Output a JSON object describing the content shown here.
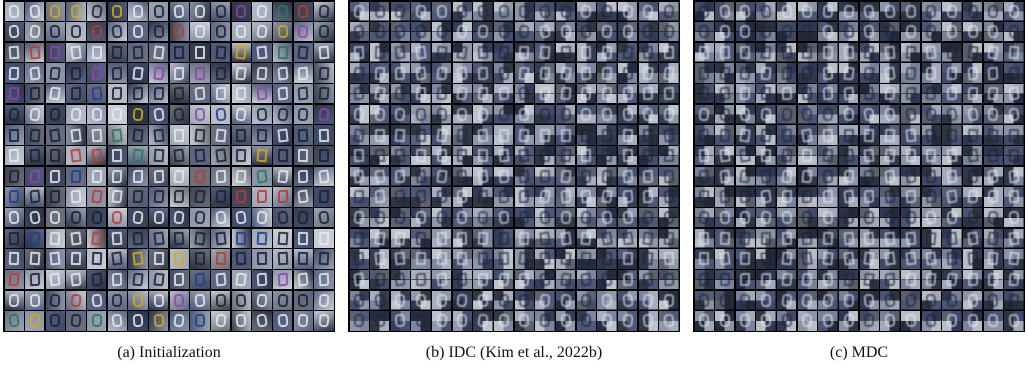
{
  "panels": [
    {
      "id": "initialization",
      "caption": "(a) Initialization",
      "style": "sharp",
      "palette": [
        "#3f4a66",
        "#5c6683",
        "#8a93a8",
        "#b7bccb",
        "#2b3348",
        "#6a6f7a",
        "#9aa4b3",
        "#4d5a7a",
        "#c8ccd4",
        "#3a4150"
      ],
      "accent": [
        "#1e3f8f",
        "#c0392b",
        "#27795a",
        "#8e44ad",
        "#d4ac0d"
      ]
    },
    {
      "id": "idc",
      "caption": "(b) IDC (Kim et al., 2022b)",
      "style": "mosaic",
      "palette": [
        "#343d58",
        "#4e5878",
        "#7c869e",
        "#a7adbf",
        "#262d40",
        "#5d6373",
        "#8f98aa",
        "#444f6d",
        "#bcc1cc",
        "#303747"
      ],
      "accent": [
        "#2a4a8c",
        "#6b7ea6",
        "#3c5580"
      ]
    },
    {
      "id": "mdc",
      "caption": "(c) MDC",
      "style": "mosaic",
      "palette": [
        "#2f3852",
        "#4a5473",
        "#78829a",
        "#a3a9bb",
        "#242a3c",
        "#595f6e",
        "#8b94a6",
        "#404a68",
        "#b8bdc8",
        "#2c3342"
      ],
      "accent": [
        "#284585",
        "#65789f",
        "#3a5079"
      ]
    }
  ]
}
